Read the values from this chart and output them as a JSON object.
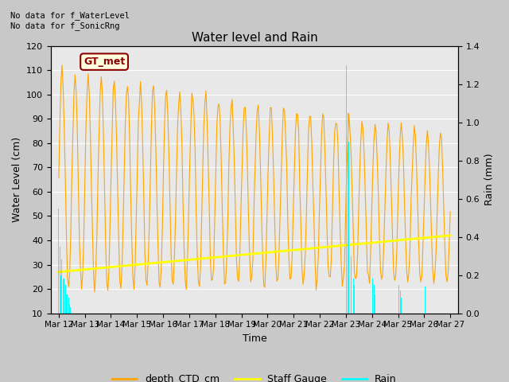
{
  "title": "Water level and Rain",
  "xlabel": "Time",
  "ylabel_left": "Water Level (cm)",
  "ylabel_right": "Rain (mm)",
  "annotation_text": "No data for f_WaterLevel\nNo data for f_SonicRng",
  "gt_met_label": "GT_met",
  "ylim_left": [
    10,
    120
  ],
  "ylim_right": [
    0.0,
    1.4
  ],
  "yticks_left": [
    10,
    20,
    30,
    40,
    50,
    60,
    70,
    80,
    90,
    100,
    110,
    120
  ],
  "yticks_right": [
    0.0,
    0.2,
    0.4,
    0.6,
    0.8,
    1.0,
    1.2,
    1.4
  ],
  "fig_bg_color": "#c8c8c8",
  "plot_bg_color": "#e8e8e8",
  "ctd_color": "#FFA500",
  "staff_color": "#FFFF00",
  "rain_color": "#00FFFF",
  "legend_labels": [
    "depth_CTD_cm",
    "Staff Gauge",
    "Rain"
  ],
  "xtick_labels": [
    "Mar 12",
    "Mar 13",
    "Mar 14",
    "Mar 15",
    "Mar 16",
    "Mar 17",
    "Mar 18",
    "Mar 19",
    "Mar 20",
    "Mar 21",
    "Mar 22",
    "Mar 23",
    "Mar 24",
    "Mar 25",
    "Mar 26",
    "Mar 27"
  ]
}
